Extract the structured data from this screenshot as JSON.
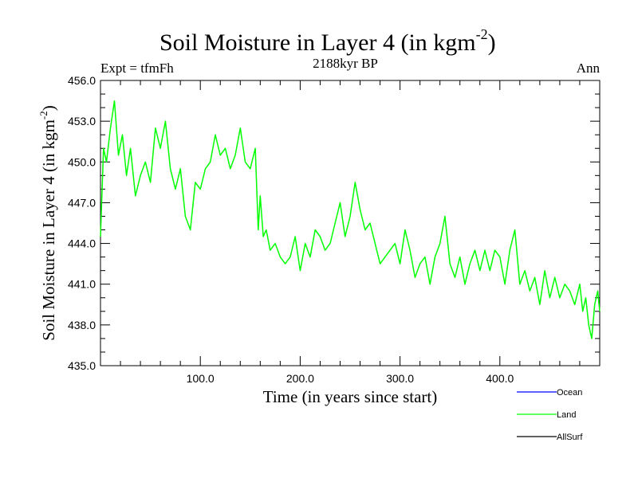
{
  "chart_data": {
    "type": "line",
    "title": "Soil Moisture in Layer 4 (in kgm",
    "title_sup": "-2",
    "title_end": ")",
    "subtitle": "2188kyr BP",
    "left_label": "Expt = tfmFh",
    "right_label": "Ann",
    "xlabel": "Time (in years since start)",
    "ylabel": "Soil Moisture in Layer 4 (in kgm",
    "ylabel_sup": "-2",
    "ylabel_end": ")",
    "xlim": [
      0,
      500
    ],
    "ylim": [
      435.0,
      456.0
    ],
    "x_ticks": [
      100,
      200,
      300,
      400
    ],
    "x_tick_labels": [
      "100.0",
      "200.0",
      "300.0",
      "400.0"
    ],
    "y_ticks": [
      435,
      438,
      441,
      444,
      447,
      450,
      453,
      456
    ],
    "y_tick_labels": [
      "435.0",
      "438.0",
      "441.0",
      "444.0",
      "447.0",
      "450.0",
      "453.0",
      "456.0"
    ],
    "legend": [
      {
        "name": "Ocean",
        "color": "#0000ff"
      },
      {
        "name": "Land",
        "color": "#00ff00"
      },
      {
        "name": "AllSurf",
        "color": "#000000"
      }
    ],
    "series": [
      {
        "name": "Land",
        "color": "#00ff00",
        "x": [
          0,
          3,
          6,
          10,
          14,
          18,
          22,
          26,
          30,
          35,
          40,
          45,
          50,
          55,
          60,
          65,
          70,
          75,
          80,
          85,
          90,
          95,
          100,
          105,
          110,
          115,
          120,
          125,
          130,
          135,
          140,
          145,
          150,
          155,
          158,
          160,
          163,
          166,
          170,
          175,
          180,
          185,
          190,
          195,
          200,
          205,
          210,
          215,
          220,
          225,
          230,
          235,
          240,
          245,
          250,
          255,
          260,
          265,
          270,
          275,
          280,
          285,
          290,
          295,
          300,
          305,
          310,
          315,
          320,
          325,
          330,
          335,
          340,
          345,
          350,
          355,
          360,
          365,
          370,
          375,
          380,
          385,
          390,
          395,
          400,
          405,
          410,
          415,
          420,
          425,
          430,
          435,
          440,
          445,
          450,
          455,
          460,
          465,
          470,
          475,
          480,
          483,
          486,
          489,
          492,
          495,
          498,
          500
        ],
        "values": [
          444.5,
          451.0,
          450.0,
          452.5,
          454.5,
          450.5,
          452.0,
          449.0,
          451.0,
          447.5,
          449.0,
          450.0,
          448.5,
          452.5,
          451.0,
          453.0,
          449.5,
          448.0,
          449.5,
          446.0,
          445.0,
          448.5,
          448.0,
          449.5,
          450.0,
          452.0,
          450.5,
          451.0,
          449.5,
          450.5,
          452.5,
          450.0,
          449.5,
          451.0,
          445.0,
          447.5,
          444.5,
          445.0,
          443.5,
          444.0,
          443.0,
          442.5,
          443.0,
          444.5,
          442.0,
          444.0,
          443.0,
          445.0,
          444.5,
          443.5,
          444.0,
          445.5,
          447.0,
          444.5,
          446.0,
          448.5,
          446.5,
          445.0,
          445.5,
          444.0,
          442.5,
          443.0,
          443.5,
          444.0,
          442.5,
          445.0,
          443.5,
          441.5,
          442.5,
          443.0,
          441.0,
          443.0,
          444.0,
          446.0,
          442.5,
          441.5,
          443.0,
          441.0,
          442.5,
          443.5,
          442.0,
          443.5,
          442.0,
          443.5,
          443.0,
          441.0,
          443.5,
          445.0,
          441.0,
          442.0,
          440.5,
          441.5,
          439.5,
          442.0,
          440.0,
          441.5,
          440.0,
          441.0,
          440.5,
          439.5,
          441.0,
          439.0,
          440.0,
          438.0,
          437.0,
          439.5,
          440.5,
          439.0
        ]
      }
    ]
  }
}
